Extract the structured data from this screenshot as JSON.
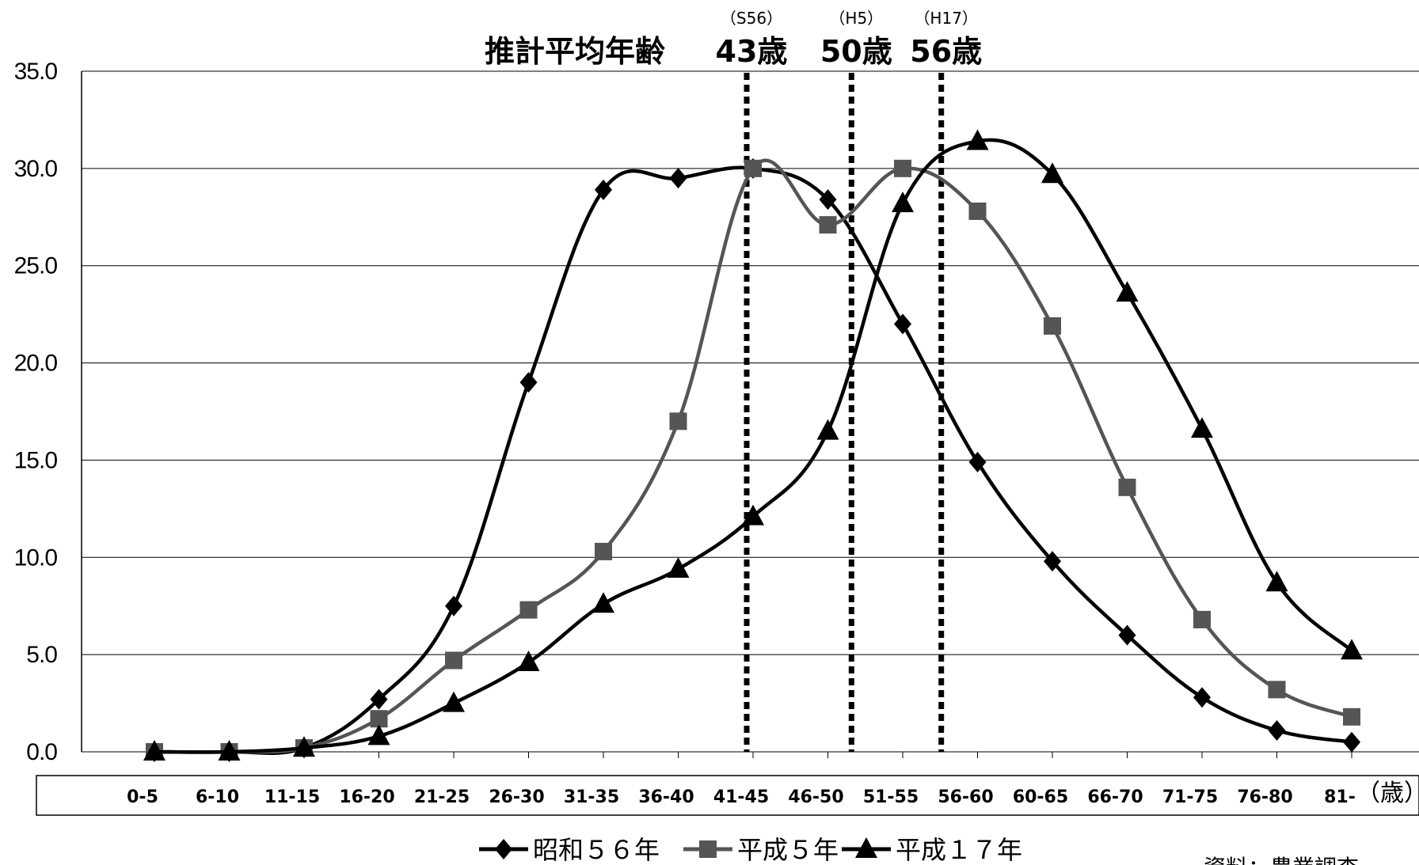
{
  "chart_data": {
    "type": "line",
    "title": "推計平均年齢",
    "unit_label": "（歳）",
    "ylim": [
      0,
      35
    ],
    "yticks": [
      "0.0",
      "5.0",
      "10.0",
      "15.0",
      "20.0",
      "25.0",
      "30.0",
      "35.0"
    ],
    "grid": true,
    "categories": [
      "0-5",
      "6-10",
      "11-15",
      "16-20",
      "21-25",
      "26-30",
      "31-35",
      "36-40",
      "41-45",
      "46-50",
      "51-55",
      "56-60",
      "60-65",
      "66-70",
      "71-75",
      "76-80",
      "81-"
    ],
    "series": [
      {
        "name": "昭和５６年",
        "marker": "diamond",
        "color": "#000000",
        "values": [
          0,
          0,
          0.2,
          2.7,
          7.5,
          19.0,
          28.9,
          29.5,
          30.0,
          28.4,
          22.0,
          14.9,
          9.8,
          6.0,
          2.8,
          1.1,
          0.5
        ]
      },
      {
        "name": "平成５年",
        "marker": "square",
        "color": "#555555",
        "values": [
          0,
          0,
          0.2,
          1.7,
          4.7,
          7.3,
          10.3,
          17.0,
          30.0,
          27.1,
          30.0,
          27.8,
          21.9,
          13.6,
          6.8,
          3.2,
          1.8
        ]
      },
      {
        "name": "平成１７年",
        "marker": "triangle",
        "color": "#000000",
        "values": [
          0,
          0,
          0.2,
          0.8,
          2.5,
          4.6,
          7.6,
          9.4,
          12.1,
          16.5,
          28.2,
          31.4,
          29.7,
          23.6,
          16.6,
          8.7,
          5.2
        ]
      }
    ],
    "reference_lines": [
      {
        "era": "（S56）",
        "age": "43歳",
        "value": 43
      },
      {
        "era": "（H5）",
        "age": "50歳",
        "value": 50
      },
      {
        "era": "（H17）",
        "age": "56歳",
        "value": 56
      }
    ],
    "legend_position": "bottom",
    "source_note": "資料：農業調査"
  }
}
